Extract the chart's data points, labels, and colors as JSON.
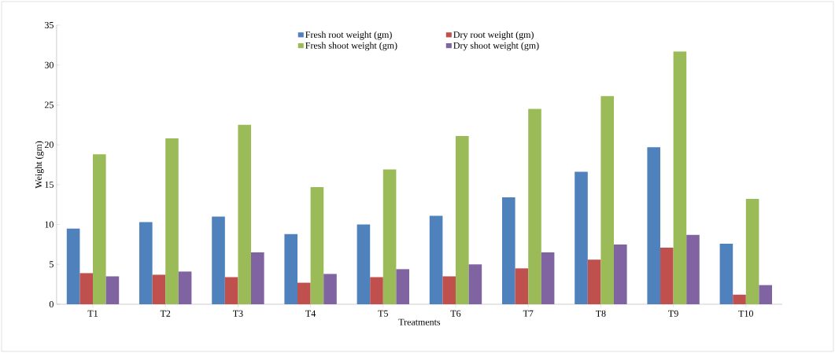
{
  "chart_data": {
    "type": "bar",
    "xlabel": "Treatments",
    "ylabel": "Weight (gm)",
    "categories": [
      "T1",
      "T2",
      "T3",
      "T4",
      "T5",
      "T6",
      "T7",
      "T8",
      "T9",
      "T10"
    ],
    "series": [
      {
        "name": "Fresh root weight (gm)",
        "color": "#4f81bd",
        "values": [
          9.5,
          10.3,
          11.0,
          8.8,
          10.0,
          11.1,
          13.4,
          16.6,
          19.7,
          7.6
        ]
      },
      {
        "name": "Dry root weight (gm)",
        "color": "#c0504d",
        "values": [
          3.9,
          3.7,
          3.4,
          2.7,
          3.4,
          3.5,
          4.5,
          5.6,
          7.1,
          1.2
        ]
      },
      {
        "name": "Fresh shoot weight (gm)",
        "color": "#9bbb59",
        "values": [
          18.8,
          20.8,
          22.5,
          14.7,
          16.9,
          21.1,
          24.5,
          26.1,
          31.7,
          13.2
        ]
      },
      {
        "name": "Dry shoot weight (gm)",
        "color": "#8064a2",
        "values": [
          3.5,
          4.1,
          6.5,
          3.8,
          4.4,
          5.0,
          6.5,
          7.5,
          8.7,
          2.4
        ]
      }
    ],
    "ylim": [
      0,
      35
    ],
    "yticks": [
      0,
      5,
      10,
      15,
      20,
      25,
      30,
      35
    ],
    "grid": false,
    "legend": "top"
  }
}
